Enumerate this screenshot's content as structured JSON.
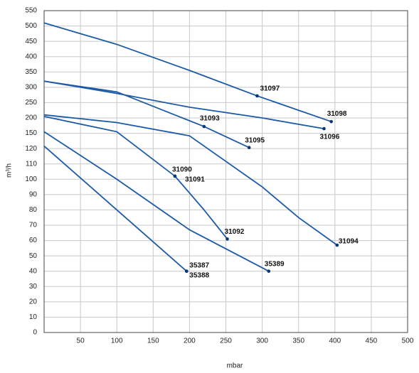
{
  "chart_data": {
    "type": "line",
    "x_label": "mbar",
    "y_label": "m³/h",
    "xlim": [
      0,
      500
    ],
    "xticks": [
      50,
      100,
      150,
      200,
      250,
      300,
      350,
      400,
      450,
      500
    ],
    "ylim": [
      0,
      550
    ],
    "yscale": "piecewise",
    "yticks": [
      0,
      10,
      20,
      30,
      40,
      50,
      60,
      70,
      80,
      90,
      100,
      110,
      120,
      150,
      200,
      250,
      300,
      350,
      400,
      450,
      500,
      550
    ],
    "grid": true,
    "color": "#1c5aa6",
    "marker_color": "#0b3575",
    "series": [
      {
        "x": [
          0,
          100,
          200,
          293,
          395
        ],
        "values": [
          510,
          440,
          355,
          272,
          188
        ]
      },
      {
        "x": [
          0,
          100,
          200,
          300,
          385
        ],
        "values": [
          320,
          280,
          235,
          200,
          165
        ]
      },
      {
        "x": [
          0,
          100,
          220,
          282
        ],
        "values": [
          320,
          285,
          172,
          122
        ]
      },
      {
        "x": [
          0,
          100,
          200,
          300,
          350,
          403
        ],
        "values": [
          210,
          185,
          145,
          95,
          75,
          57
        ]
      },
      {
        "x": [
          0,
          100,
          180,
          220,
          252
        ],
        "values": [
          205,
          155,
          102,
          80,
          61
        ]
      },
      {
        "x": [
          0,
          100,
          200,
          309
        ],
        "values": [
          155,
          100,
          67,
          40
        ]
      },
      {
        "x": [
          0,
          100,
          196
        ],
        "values": [
          125,
          80,
          40
        ]
      }
    ],
    "annotations": [
      {
        "text": "31097",
        "x": 293,
        "y": 272
      },
      {
        "text": "31098",
        "x": 395,
        "y": 188
      },
      {
        "text": "31096",
        "x": 385,
        "y": 165
      },
      {
        "text": "31093",
        "x": 220,
        "y": 172
      },
      {
        "text": "31095",
        "x": 282,
        "y": 122
      },
      {
        "text": "31094",
        "x": 403,
        "y": 57
      },
      {
        "text": "31090",
        "x": 180,
        "y": 102
      },
      {
        "text": "31091",
        "x": 180,
        "y": 102
      },
      {
        "text": "31092",
        "x": 252,
        "y": 61
      },
      {
        "text": "35389",
        "x": 309,
        "y": 40
      },
      {
        "text": "35387",
        "x": 196,
        "y": 40
      },
      {
        "text": "35388",
        "x": 196,
        "y": 40
      }
    ]
  }
}
